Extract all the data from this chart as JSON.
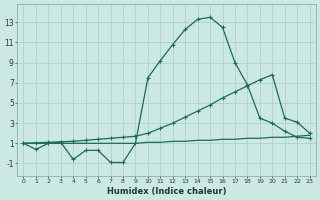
{
  "xlabel": "Humidex (Indice chaleur)",
  "background_color": "#cce8e2",
  "grid_color": "#aaccc4",
  "line_color": "#1a6b5a",
  "xlim": [
    -0.5,
    23.5
  ],
  "ylim": [
    -2.2,
    14.8
  ],
  "xticks": [
    0,
    1,
    2,
    3,
    4,
    5,
    6,
    7,
    8,
    9,
    10,
    11,
    12,
    13,
    14,
    15,
    16,
    17,
    18,
    19,
    20,
    21,
    22,
    23
  ],
  "yticks": [
    -1,
    1,
    3,
    5,
    7,
    9,
    11,
    13
  ],
  "line1_x": [
    0,
    1,
    2,
    3,
    4,
    5,
    6,
    7,
    8,
    9,
    10,
    11,
    12,
    13,
    14,
    15,
    16,
    17,
    18,
    19,
    20,
    21,
    22,
    23
  ],
  "line1_y": [
    1.0,
    0.4,
    1.0,
    1.1,
    -0.6,
    0.3,
    0.3,
    -0.9,
    -0.9,
    1.0,
    7.5,
    9.2,
    10.8,
    12.3,
    13.3,
    13.5,
    12.5,
    9.0,
    6.8,
    3.5,
    3.0,
    2.2,
    1.6,
    1.5
  ],
  "line2_x": [
    0,
    1,
    2,
    3,
    4,
    5,
    6,
    7,
    8,
    9,
    10,
    11,
    12,
    13,
    14,
    15,
    16,
    17,
    18,
    19,
    20,
    21,
    22,
    23
  ],
  "line2_y": [
    1.0,
    1.05,
    1.1,
    1.15,
    1.2,
    1.3,
    1.4,
    1.5,
    1.6,
    1.7,
    2.0,
    2.5,
    3.0,
    3.6,
    4.2,
    4.8,
    5.5,
    6.1,
    6.7,
    7.3,
    7.8,
    3.5,
    3.1,
    2.0
  ],
  "line3_x": [
    0,
    1,
    2,
    3,
    4,
    5,
    6,
    7,
    8,
    9,
    10,
    11,
    12,
    13,
    14,
    15,
    16,
    17,
    18,
    19,
    20,
    21,
    22,
    23
  ],
  "line3_y": [
    1.0,
    1.0,
    1.0,
    1.0,
    1.0,
    1.0,
    1.0,
    1.0,
    1.0,
    1.0,
    1.1,
    1.1,
    1.2,
    1.2,
    1.3,
    1.3,
    1.4,
    1.4,
    1.5,
    1.5,
    1.6,
    1.6,
    1.7,
    1.8
  ]
}
